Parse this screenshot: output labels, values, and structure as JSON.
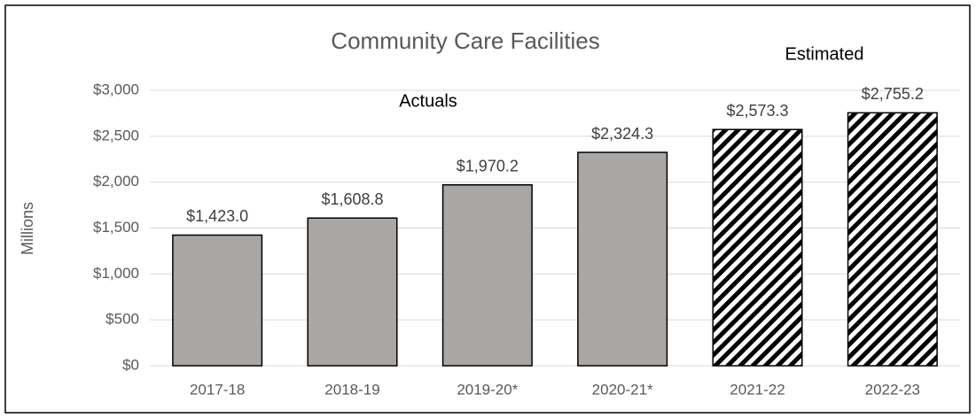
{
  "chart_data": {
    "type": "bar",
    "title": "Community Care Facilities",
    "y_label": "Millions",
    "annotations": [
      "Actuals",
      "Estimated"
    ],
    "categories": [
      "2017-18",
      "2018-19",
      "2019-20*",
      "2020-21*",
      "2021-22",
      "2022-23"
    ],
    "values": [
      1423.0,
      1608.8,
      1970.2,
      2324.3,
      2573.3,
      2755.2
    ],
    "value_labels": [
      "$1,423.0",
      "$1,608.8",
      "$1,970.2",
      "$2,324.3",
      "$2,573.3",
      "$2,755.2"
    ],
    "color": "#a9a6a4",
    "hatched": [
      false,
      false,
      false,
      false,
      true,
      true
    ],
    "ylim": [
      0,
      3000
    ],
    "yticks": [
      {
        "value": 0,
        "label": "$0"
      },
      {
        "value": 500,
        "label": "$500"
      },
      {
        "value": 1000,
        "label": "$1,000"
      },
      {
        "value": 1500,
        "label": "$1,500"
      },
      {
        "value": 2000,
        "label": "$2,000"
      },
      {
        "value": 2500,
        "label": "$2,500"
      },
      {
        "value": 3000,
        "label": "$3,000"
      }
    ],
    "grid": true
  }
}
